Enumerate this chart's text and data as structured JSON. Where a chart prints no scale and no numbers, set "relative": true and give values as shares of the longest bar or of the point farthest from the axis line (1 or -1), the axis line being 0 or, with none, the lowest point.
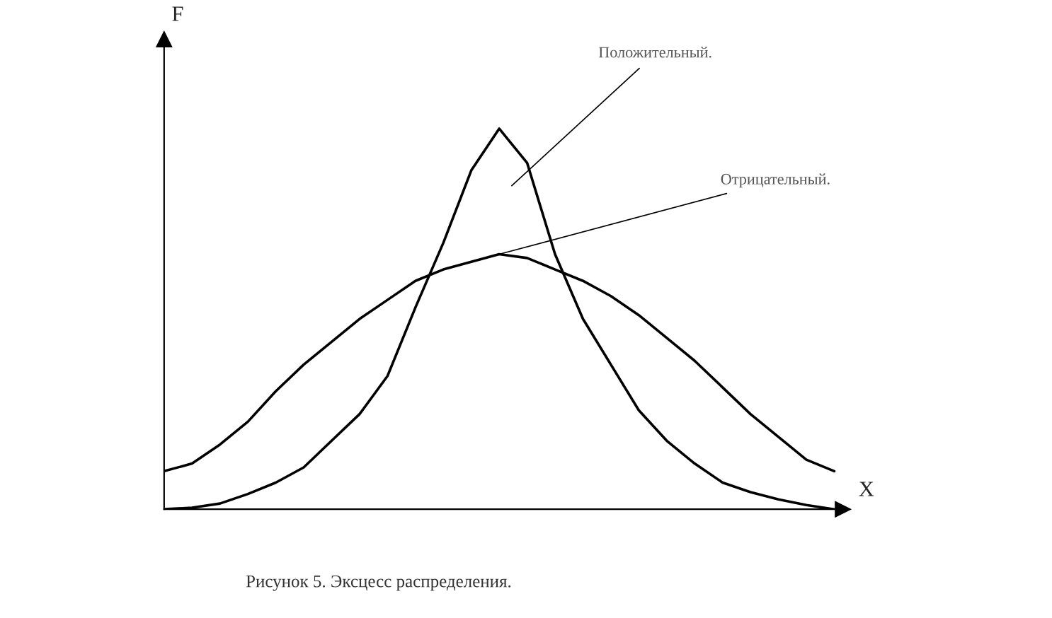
{
  "chart_data": {
    "type": "line",
    "relative": true,
    "xlabel": "X",
    "ylabel": "F",
    "categories": [
      null,
      null,
      null,
      null,
      null,
      null,
      null,
      null,
      null,
      null,
      null,
      null,
      null,
      null,
      null,
      null,
      null,
      null,
      null,
      null,
      null,
      null,
      null,
      null,
      null
    ],
    "series": [
      {
        "color": "#000000",
        "values": [
          0,
          0.004,
          0.015,
          0.04,
          0.07,
          0.11,
          0.18,
          0.25,
          0.35,
          0.53,
          0.7,
          0.89,
          1.0,
          0.91,
          0.67,
          0.5,
          0.38,
          0.26,
          0.18,
          0.12,
          0.07,
          0.045,
          0.026,
          0.011,
          0
        ]
      },
      {
        "color": "#000000",
        "values": [
          0.1,
          0.12,
          0.17,
          0.23,
          0.31,
          0.38,
          0.44,
          0.5,
          0.55,
          0.6,
          0.63,
          0.65,
          0.67,
          0.66,
          0.63,
          0.6,
          0.56,
          0.51,
          0.45,
          0.39,
          0.32,
          0.25,
          0.19,
          0.13,
          0.1
        ]
      }
    ],
    "annotations": [
      "Положительный.",
      "Отрицательный.",
      "Рисунок 5. Эксцесс распределения."
    ],
    "grid": false,
    "legend": false,
    "marker": "none",
    "line_style": "solid"
  }
}
